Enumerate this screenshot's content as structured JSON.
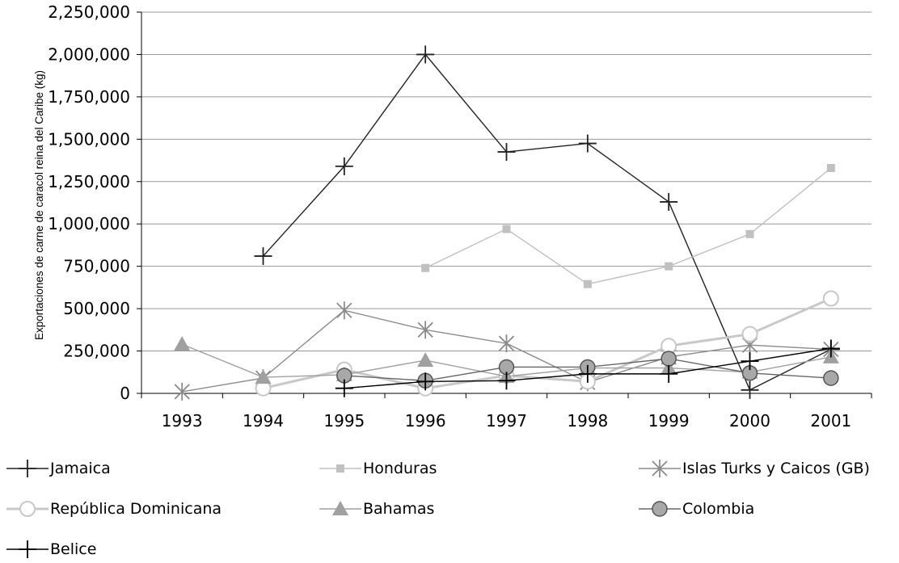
{
  "chart_data": {
    "type": "line",
    "title": "",
    "xlabel": "",
    "ylabel": "Exportaciones de carne de caracol reina del Caribe (kg)",
    "categories": [
      "1993",
      "1994",
      "1995",
      "1996",
      "1997",
      "1998",
      "1999",
      "2000",
      "2001"
    ],
    "ylim": [
      0,
      2250000
    ],
    "yticks": [
      0,
      250000,
      500000,
      750000,
      1000000,
      1250000,
      1500000,
      1750000,
      2000000,
      2250000
    ],
    "ytick_labels": [
      "0",
      "250,000",
      "500,000",
      "750,000",
      "1,000,000",
      "1,250,000",
      "1,500,000",
      "1,750,000",
      "2,000,000",
      "2,250,000"
    ],
    "grid": "horizontal",
    "legend_position": "bottom",
    "series": [
      {
        "name": "Jamaica",
        "marker": "plus",
        "color": "#222222",
        "values": [
          null,
          810000,
          1340000,
          2000000,
          1425000,
          1475000,
          1130000,
          20000,
          260000
        ]
      },
      {
        "name": "Honduras",
        "marker": "square",
        "color": "#c0c0c0",
        "values": [
          null,
          null,
          null,
          740000,
          970000,
          645000,
          750000,
          940000,
          1330000
        ]
      },
      {
        "name": "Islas Turks y Caicos (GB)",
        "marker": "asterisk",
        "color": "#8a8a8a",
        "values": [
          10000,
          90000,
          490000,
          375000,
          295000,
          65000,
          215000,
          285000,
          260000
        ]
      },
      {
        "name": "República Dominicana",
        "marker": "circle-open",
        "color": "#c8c8c8",
        "values": [
          null,
          30000,
          140000,
          30000,
          105000,
          70000,
          280000,
          350000,
          560000
        ]
      },
      {
        "name": "Bahamas",
        "marker": "triangle",
        "color": "#a0a0a0",
        "values": [
          290000,
          95000,
          110000,
          195000,
          100000,
          150000,
          150000,
          125000,
          215000
        ]
      },
      {
        "name": "Colombia",
        "marker": "circle-filled",
        "color": "#666666",
        "values": [
          null,
          null,
          105000,
          75000,
          155000,
          155000,
          205000,
          120000,
          90000
        ]
      },
      {
        "name": "Belice",
        "marker": "plus",
        "color": "#000000",
        "values": [
          null,
          null,
          30000,
          70000,
          75000,
          115000,
          115000,
          190000,
          265000
        ]
      }
    ]
  }
}
